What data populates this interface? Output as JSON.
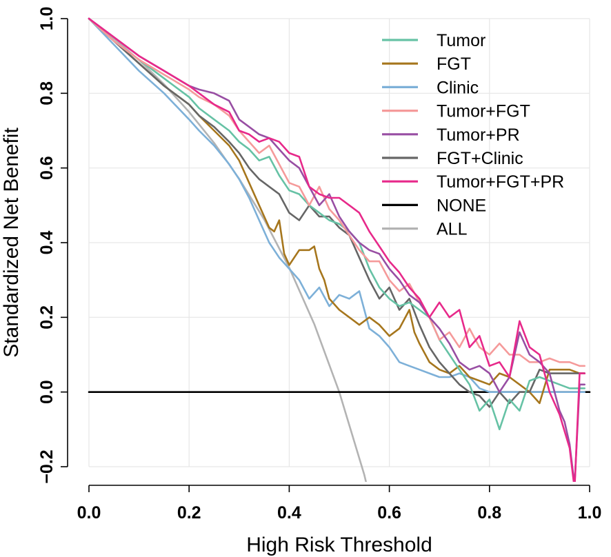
{
  "chart_data": {
    "type": "line",
    "title": "",
    "xlabel": "High Risk Threshold",
    "ylabel": "Standardized Net Benefit",
    "xlim": [
      0,
      1
    ],
    "ylim": [
      -0.2,
      1.0
    ],
    "xticks": [
      "0.0",
      "0.2",
      "0.4",
      "0.6",
      "0.8",
      "1.0"
    ],
    "yticks": [
      "−0.2",
      "0.0",
      "0.2",
      "0.4",
      "0.6",
      "0.8",
      "1.0"
    ],
    "grid": true,
    "legend_position": "top-right",
    "series": [
      {
        "name": "Tumor",
        "color": "#66c2a5",
        "x": [
          0,
          0.05,
          0.1,
          0.15,
          0.2,
          0.22,
          0.25,
          0.28,
          0.3,
          0.32,
          0.34,
          0.36,
          0.38,
          0.4,
          0.42,
          0.44,
          0.46,
          0.48,
          0.5,
          0.52,
          0.54,
          0.56,
          0.58,
          0.6,
          0.62,
          0.64,
          0.66,
          0.68,
          0.7,
          0.72,
          0.74,
          0.76,
          0.78,
          0.8,
          0.82,
          0.84,
          0.86,
          0.88,
          0.9,
          0.92,
          0.94,
          0.96,
          0.98,
          0.99
        ],
        "y": [
          1,
          0.94,
          0.89,
          0.84,
          0.79,
          0.76,
          0.73,
          0.7,
          0.67,
          0.65,
          0.62,
          0.63,
          0.58,
          0.54,
          0.53,
          0.5,
          0.48,
          0.46,
          0.45,
          0.43,
          0.4,
          0.33,
          0.28,
          0.25,
          0.23,
          0.24,
          0.22,
          0.2,
          0.14,
          0.1,
          0.06,
          0.02,
          -0.05,
          -0.02,
          -0.1,
          -0.02,
          -0.05,
          0.03,
          0.04,
          0.03,
          0.02,
          0.01,
          0.01,
          0.01
        ]
      },
      {
        "name": "FGT",
        "color": "#a6761d",
        "x": [
          0,
          0.05,
          0.1,
          0.15,
          0.2,
          0.22,
          0.25,
          0.28,
          0.3,
          0.32,
          0.34,
          0.36,
          0.37,
          0.38,
          0.39,
          0.4,
          0.42,
          0.44,
          0.45,
          0.46,
          0.47,
          0.48,
          0.5,
          0.52,
          0.54,
          0.56,
          0.58,
          0.6,
          0.62,
          0.64,
          0.65,
          0.66,
          0.68,
          0.7,
          0.72,
          0.74,
          0.76,
          0.78,
          0.8,
          0.82,
          0.84,
          0.86,
          0.88,
          0.9,
          0.92,
          0.94,
          0.96,
          0.98,
          0.99
        ],
        "y": [
          1,
          0.94,
          0.88,
          0.82,
          0.77,
          0.74,
          0.7,
          0.66,
          0.62,
          0.56,
          0.5,
          0.44,
          0.43,
          0.46,
          0.37,
          0.34,
          0.38,
          0.38,
          0.39,
          0.33,
          0.3,
          0.25,
          0.22,
          0.2,
          0.18,
          0.2,
          0.18,
          0.15,
          0.17,
          0.22,
          0.16,
          0.13,
          0.08,
          0.06,
          0.05,
          0.07,
          0.04,
          0.03,
          0.02,
          0.05,
          0.04,
          0.02,
          0.0,
          -0.03,
          0.06,
          0.06,
          0.06,
          0.05,
          0.05
        ]
      },
      {
        "name": "Clinic",
        "color": "#7db0d8",
        "x": [
          0,
          0.05,
          0.1,
          0.15,
          0.2,
          0.22,
          0.25,
          0.28,
          0.3,
          0.32,
          0.34,
          0.36,
          0.38,
          0.4,
          0.42,
          0.44,
          0.46,
          0.48,
          0.5,
          0.52,
          0.54,
          0.56,
          0.58,
          0.6,
          0.62,
          0.64,
          0.66,
          0.68,
          0.7,
          0.72,
          0.74,
          0.76,
          0.78,
          0.8,
          0.82,
          0.84,
          0.86,
          0.88,
          0.9,
          0.92,
          0.94,
          0.96,
          0.98,
          0.99
        ],
        "y": [
          1,
          0.93,
          0.86,
          0.8,
          0.73,
          0.7,
          0.66,
          0.61,
          0.57,
          0.52,
          0.46,
          0.4,
          0.36,
          0.33,
          0.3,
          0.25,
          0.28,
          0.23,
          0.26,
          0.25,
          0.27,
          0.17,
          0.15,
          0.12,
          0.08,
          0.07,
          0.06,
          0.05,
          0.04,
          0.04,
          0.05,
          0.04,
          0.01,
          0.0,
          0.0,
          0.0,
          0.0,
          0.0,
          0.0,
          0.0,
          0.0,
          0.0,
          0.0,
          0.0
        ]
      },
      {
        "name": "Tumor+FGT",
        "color": "#f59a9a",
        "x": [
          0,
          0.05,
          0.1,
          0.15,
          0.2,
          0.22,
          0.25,
          0.28,
          0.3,
          0.32,
          0.34,
          0.36,
          0.38,
          0.4,
          0.42,
          0.44,
          0.46,
          0.48,
          0.5,
          0.52,
          0.54,
          0.56,
          0.58,
          0.6,
          0.62,
          0.64,
          0.66,
          0.68,
          0.7,
          0.72,
          0.74,
          0.76,
          0.78,
          0.8,
          0.82,
          0.84,
          0.86,
          0.88,
          0.9,
          0.92,
          0.94,
          0.96,
          0.98,
          0.99
        ],
        "y": [
          1,
          0.94,
          0.89,
          0.85,
          0.81,
          0.79,
          0.77,
          0.74,
          0.7,
          0.67,
          0.64,
          0.66,
          0.61,
          0.56,
          0.55,
          0.5,
          0.55,
          0.49,
          0.46,
          0.42,
          0.38,
          0.35,
          0.35,
          0.3,
          0.27,
          0.29,
          0.24,
          0.2,
          0.14,
          0.16,
          0.12,
          0.17,
          0.12,
          0.1,
          0.13,
          0.1,
          0.1,
          0.08,
          0.08,
          0.09,
          0.08,
          0.08,
          0.07,
          0.07
        ]
      },
      {
        "name": "Tumor+PR",
        "color": "#984ea3",
        "x": [
          0,
          0.05,
          0.1,
          0.15,
          0.2,
          0.22,
          0.25,
          0.28,
          0.3,
          0.32,
          0.34,
          0.36,
          0.38,
          0.4,
          0.42,
          0.44,
          0.46,
          0.48,
          0.5,
          0.52,
          0.54,
          0.56,
          0.58,
          0.6,
          0.62,
          0.64,
          0.66,
          0.68,
          0.7,
          0.72,
          0.74,
          0.76,
          0.78,
          0.8,
          0.82,
          0.84,
          0.86,
          0.88,
          0.9,
          0.92,
          0.94,
          0.95,
          0.96,
          0.97,
          0.98,
          0.99
        ],
        "y": [
          1,
          0.95,
          0.9,
          0.86,
          0.82,
          0.81,
          0.8,
          0.78,
          0.73,
          0.71,
          0.69,
          0.68,
          0.65,
          0.62,
          0.6,
          0.55,
          0.5,
          0.53,
          0.47,
          0.43,
          0.4,
          0.38,
          0.37,
          0.33,
          0.3,
          0.26,
          0.24,
          0.2,
          0.17,
          0.13,
          0.08,
          0.06,
          0.07,
          0.05,
          0.0,
          0.04,
          0.16,
          0.1,
          0.08,
          0.05,
          -0.05,
          -0.08,
          -0.14,
          -0.25,
          0.02,
          0.02
        ]
      },
      {
        "name": "FGT+Clinic",
        "color": "#666666",
        "x": [
          0,
          0.05,
          0.1,
          0.15,
          0.2,
          0.22,
          0.25,
          0.28,
          0.3,
          0.32,
          0.34,
          0.36,
          0.38,
          0.4,
          0.42,
          0.44,
          0.46,
          0.48,
          0.5,
          0.52,
          0.54,
          0.56,
          0.58,
          0.6,
          0.62,
          0.64,
          0.66,
          0.68,
          0.7,
          0.72,
          0.74,
          0.76,
          0.78,
          0.8,
          0.82,
          0.84,
          0.86,
          0.88,
          0.9,
          0.92,
          0.94,
          0.96,
          0.98,
          0.99
        ],
        "y": [
          1,
          0.94,
          0.88,
          0.82,
          0.77,
          0.74,
          0.71,
          0.67,
          0.64,
          0.6,
          0.57,
          0.55,
          0.53,
          0.48,
          0.46,
          0.5,
          0.47,
          0.47,
          0.44,
          0.42,
          0.36,
          0.3,
          0.25,
          0.28,
          0.22,
          0.25,
          0.18,
          0.12,
          0.08,
          0.05,
          0.02,
          0.0,
          -0.01,
          -0.04,
          0.0,
          -0.03,
          0.0,
          0.0,
          0.06,
          0.05,
          0.05,
          0.05,
          0.05,
          0.05
        ]
      },
      {
        "name": "Tumor+FGT+PR",
        "color": "#e7298a",
        "x": [
          0,
          0.05,
          0.1,
          0.15,
          0.2,
          0.22,
          0.25,
          0.28,
          0.3,
          0.32,
          0.34,
          0.36,
          0.38,
          0.4,
          0.42,
          0.44,
          0.46,
          0.48,
          0.5,
          0.52,
          0.54,
          0.56,
          0.58,
          0.6,
          0.62,
          0.64,
          0.66,
          0.68,
          0.7,
          0.72,
          0.74,
          0.76,
          0.78,
          0.8,
          0.82,
          0.84,
          0.86,
          0.88,
          0.9,
          0.92,
          0.94,
          0.96,
          0.97,
          0.98,
          0.99
        ],
        "y": [
          1,
          0.95,
          0.9,
          0.86,
          0.82,
          0.8,
          0.77,
          0.75,
          0.7,
          0.69,
          0.67,
          0.68,
          0.67,
          0.64,
          0.63,
          0.55,
          0.53,
          0.52,
          0.52,
          0.5,
          0.48,
          0.43,
          0.39,
          0.35,
          0.32,
          0.28,
          0.25,
          0.2,
          0.24,
          0.2,
          0.22,
          0.12,
          0.15,
          0.07,
          0.08,
          0.04,
          0.19,
          0.12,
          0.1,
          0.0,
          -0.06,
          -0.15,
          -0.26,
          0.05,
          0.05
        ]
      },
      {
        "name": "NONE",
        "color": "#000000",
        "x": [
          0,
          1
        ],
        "y": [
          0,
          0
        ]
      },
      {
        "name": "ALL",
        "color": "#b3b3b3",
        "x": [
          0,
          0.05,
          0.1,
          0.15,
          0.2,
          0.25,
          0.3,
          0.35,
          0.4,
          0.45,
          0.5,
          0.55,
          0.555
        ],
        "y": [
          1,
          0.947,
          0.889,
          0.824,
          0.75,
          0.667,
          0.571,
          0.462,
          0.333,
          0.182,
          0.0,
          -0.222,
          -0.25
        ]
      }
    ]
  }
}
